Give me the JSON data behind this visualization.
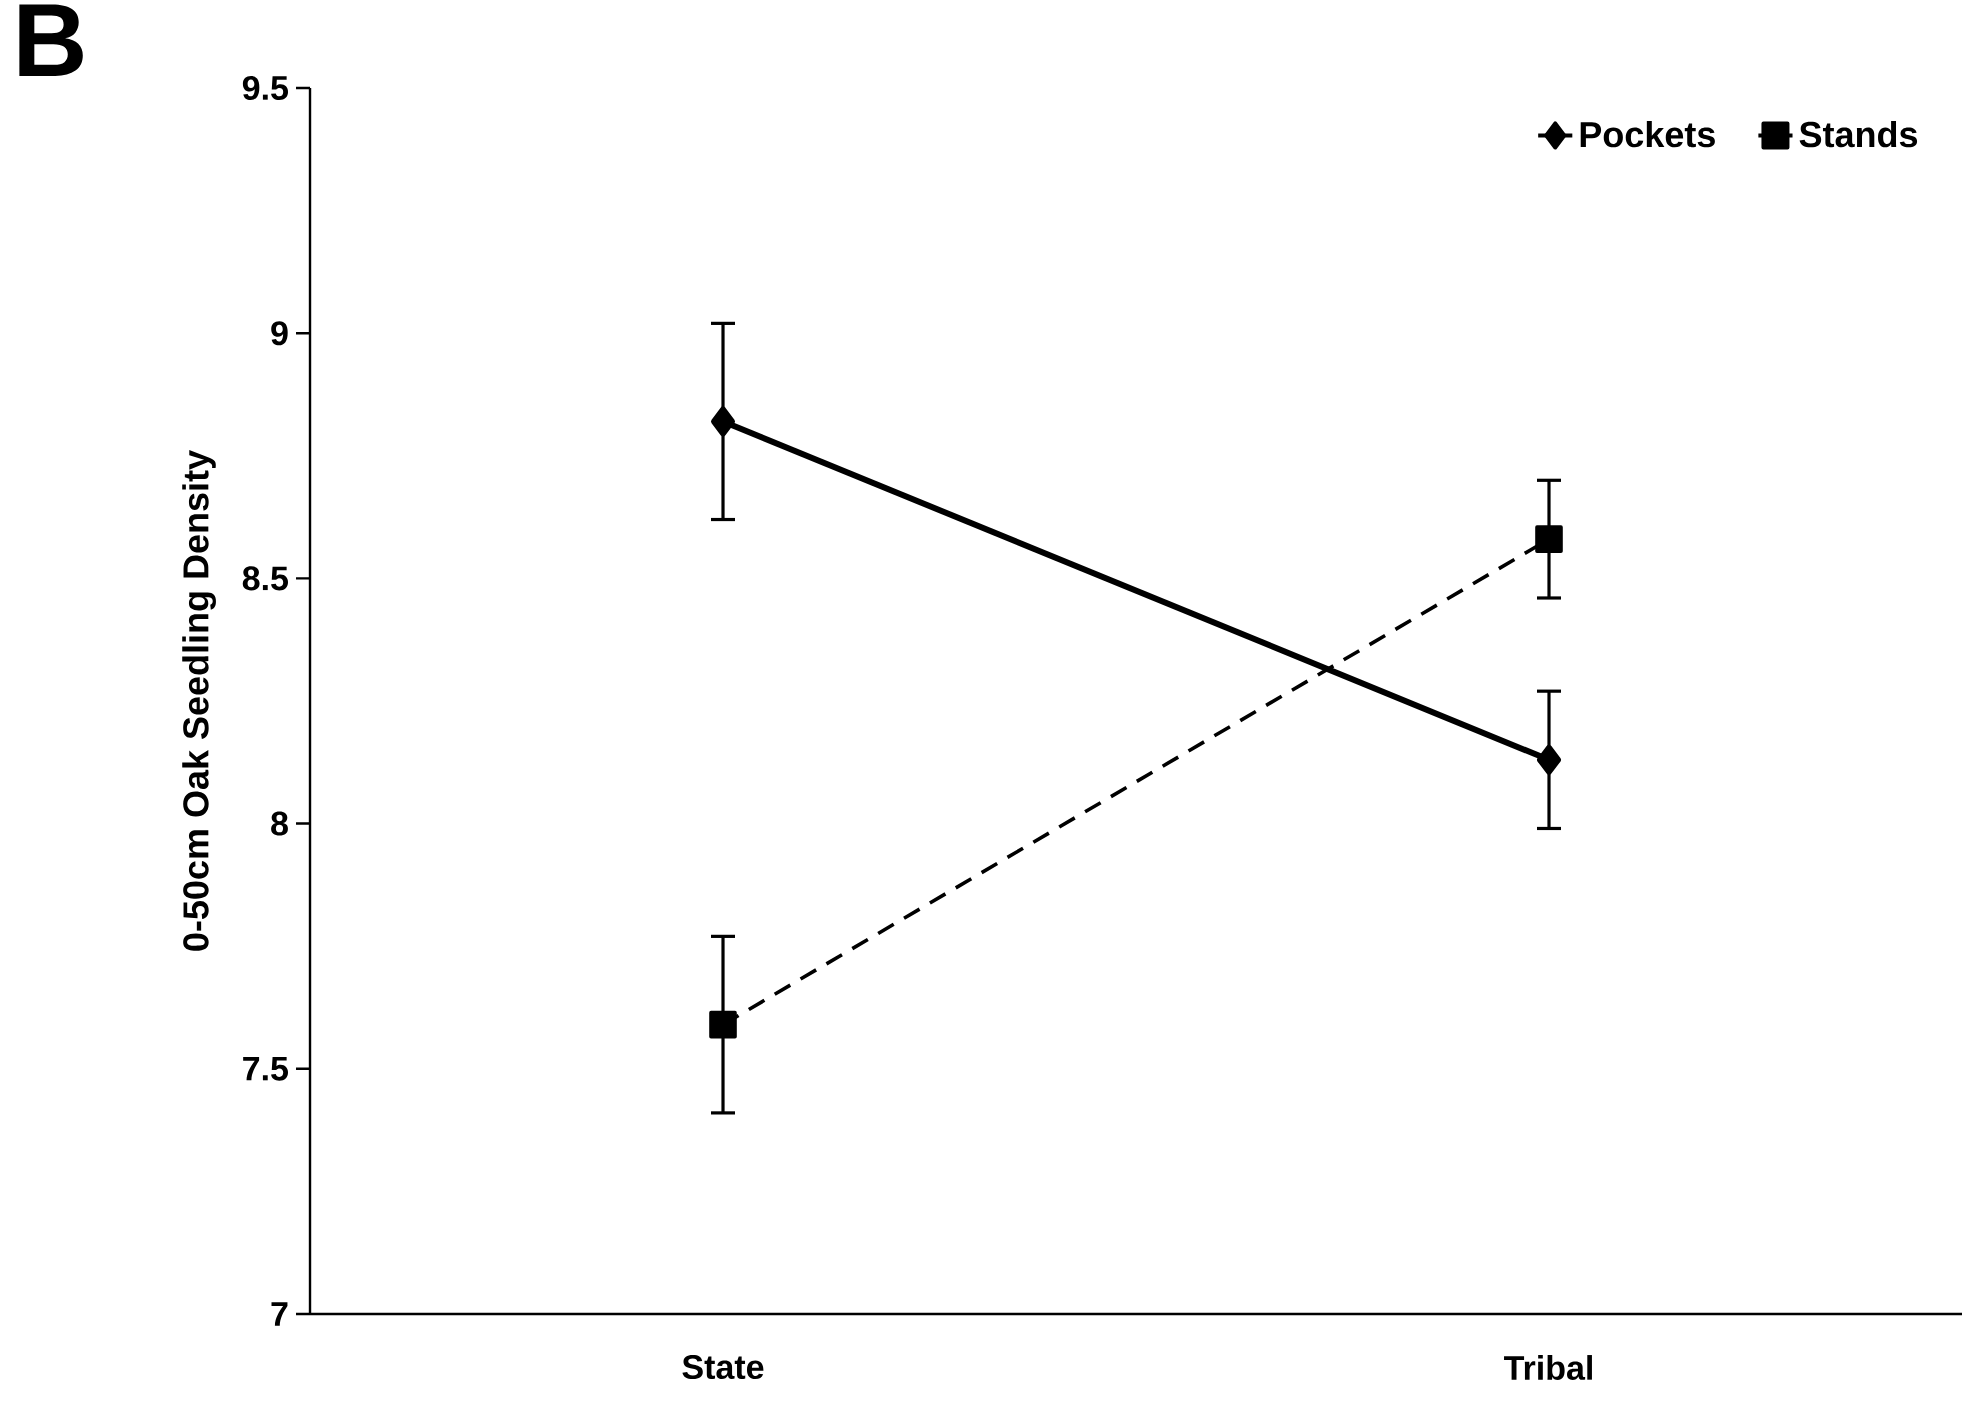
{
  "chart_data": {
    "type": "line",
    "ylabel": "0-50cm Oak Seedling Density",
    "categories": [
      "State",
      "Tribal"
    ],
    "series": [
      {
        "name": "Pockets",
        "color": "#000000",
        "values": [
          8.82,
          8.13
        ],
        "errors": [
          0.2,
          0.14
        ],
        "marker": "diamond",
        "line_style": "solid"
      },
      {
        "name": "Stands",
        "color": "#000000",
        "values": [
          7.59,
          8.58
        ],
        "errors": [
          0.18,
          0.12
        ],
        "marker": "square",
        "line_style": "dashed"
      }
    ],
    "ylim": [
      7,
      9.5
    ],
    "yticks": [
      7,
      7.5,
      8,
      8.5,
      9,
      9.5
    ],
    "annotations": [
      "B"
    ],
    "legend": "top right",
    "grid": false
  }
}
